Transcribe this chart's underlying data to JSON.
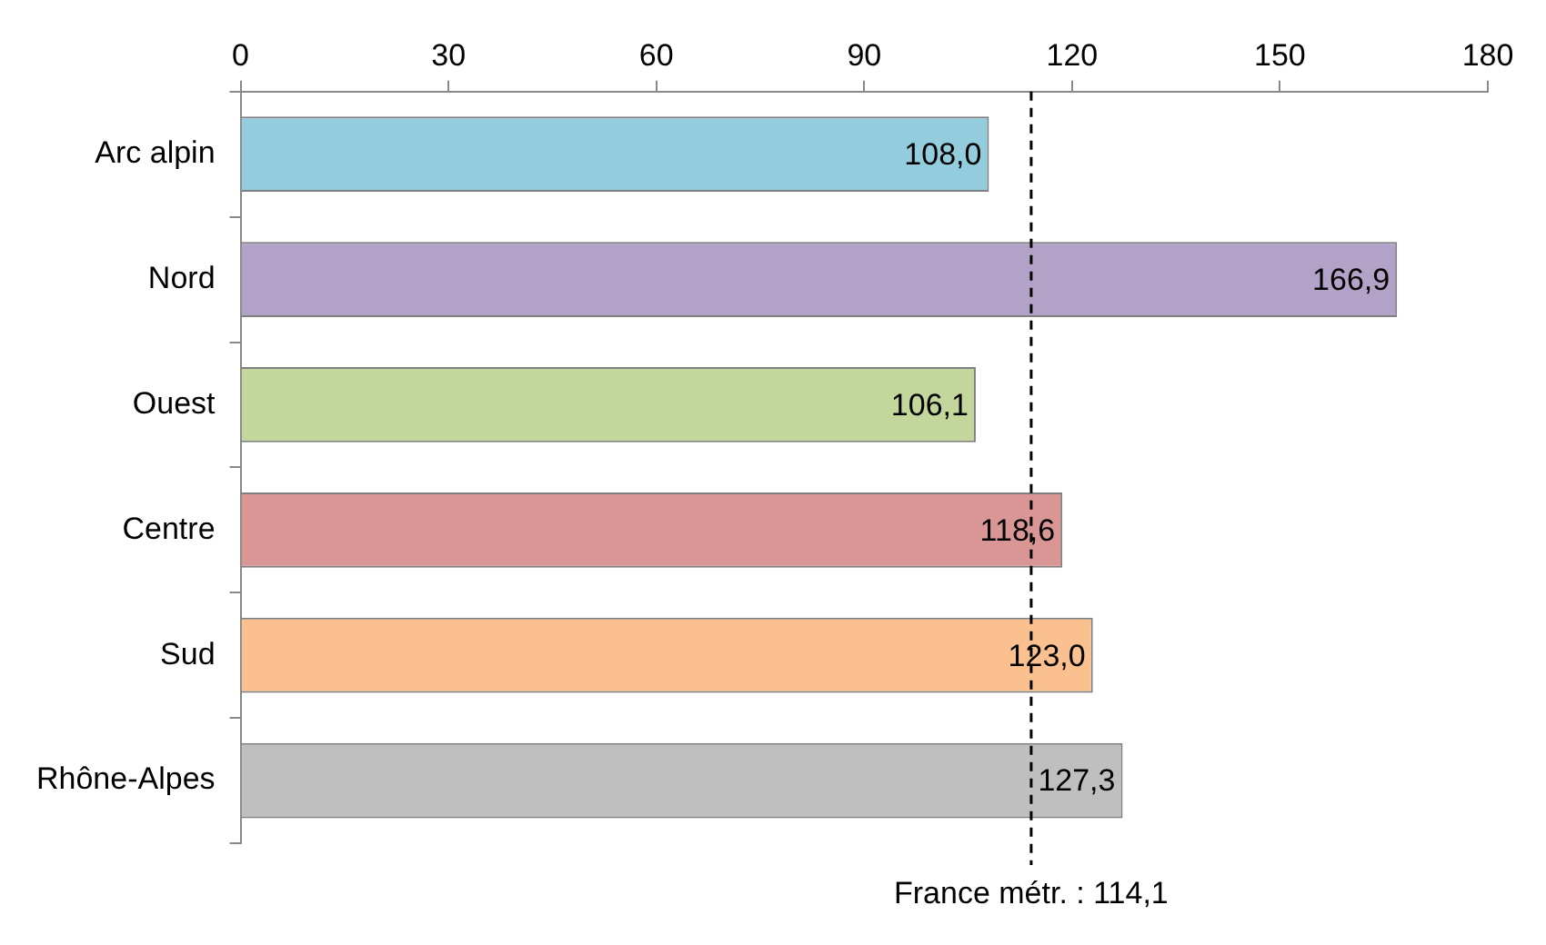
{
  "chart_data": {
    "type": "bar",
    "orientation": "horizontal",
    "categories": [
      "Arc alpin",
      "Nord",
      "Ouest",
      "Centre",
      "Sud",
      "Rhône-Alpes"
    ],
    "values": [
      108.0,
      166.9,
      106.1,
      118.6,
      123.0,
      127.3
    ],
    "colors": [
      "#93cddd",
      "#b3a2c7",
      "#c3d69b",
      "#d99694",
      "#fac090",
      "#bfbfbf"
    ],
    "value_labels": [
      "108,0",
      "166,9",
      "106,1",
      "118,6",
      "123,0",
      "127,3"
    ],
    "xlim": [
      0,
      180
    ],
    "xticks": [
      0,
      30,
      60,
      90,
      120,
      150,
      180
    ],
    "ref_lines": [
      {
        "axis": "x",
        "value": 114.1,
        "label": "France métr. : 114,1",
        "line_style": "dashed",
        "color": "#000000"
      }
    ],
    "grid": false,
    "legend": false
  }
}
